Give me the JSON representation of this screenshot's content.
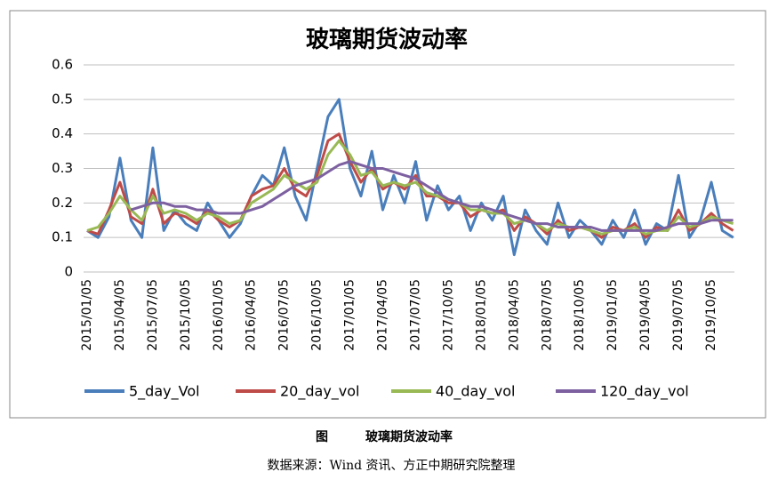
{
  "chart_data": {
    "type": "line",
    "title": "玻璃期货波动率",
    "categories": [
      "2015/01/05",
      null,
      null,
      "2015/04/05",
      null,
      null,
      "2015/07/05",
      null,
      null,
      "2015/10/05",
      null,
      null,
      "2016/01/05",
      null,
      null,
      "2016/04/05",
      null,
      null,
      "2016/07/05",
      null,
      null,
      "2016/10/05",
      null,
      null,
      "2017/01/05",
      null,
      null,
      "2017/04/05",
      null,
      null,
      "2017/07/05",
      null,
      null,
      "2017/10/05",
      null,
      null,
      "2018/01/05",
      null,
      null,
      "2018/04/05",
      null,
      null,
      "2018/07/05",
      null,
      null,
      "2018/10/05",
      null,
      null,
      "2019/01/05",
      null,
      null,
      "2019/04/05",
      null,
      null,
      "2019/07/05",
      null,
      null,
      "2019/10/05",
      null,
      null
    ],
    "series": [
      {
        "name": "5_day_Vol",
        "color": "#4a7ebb",
        "values": [
          0.12,
          0.1,
          0.16,
          0.33,
          0.15,
          0.1,
          0.36,
          0.12,
          0.18,
          0.14,
          0.12,
          0.2,
          0.15,
          0.1,
          0.14,
          0.22,
          0.28,
          0.25,
          0.36,
          0.22,
          0.15,
          0.3,
          0.45,
          0.5,
          0.3,
          0.22,
          0.35,
          0.18,
          0.28,
          0.2,
          0.32,
          0.15,
          0.25,
          0.18,
          0.22,
          0.12,
          0.2,
          0.15,
          0.22,
          0.05,
          0.18,
          0.12,
          0.08,
          0.2,
          0.1,
          0.15,
          0.12,
          0.08,
          0.15,
          0.1,
          0.18,
          0.08,
          0.14,
          0.12,
          0.28,
          0.1,
          0.15,
          0.26,
          0.12,
          0.1
        ]
      },
      {
        "name": "20_day_vol",
        "color": "#be4b48",
        "values": [
          0.12,
          0.11,
          0.18,
          0.26,
          0.16,
          0.14,
          0.24,
          0.14,
          0.17,
          0.16,
          0.14,
          0.18,
          0.15,
          0.13,
          0.15,
          0.22,
          0.24,
          0.25,
          0.3,
          0.24,
          0.22,
          0.28,
          0.38,
          0.4,
          0.32,
          0.26,
          0.3,
          0.24,
          0.26,
          0.24,
          0.28,
          0.22,
          0.22,
          0.2,
          0.2,
          0.16,
          0.18,
          0.17,
          0.18,
          0.12,
          0.16,
          0.14,
          0.11,
          0.15,
          0.12,
          0.13,
          0.12,
          0.1,
          0.13,
          0.12,
          0.14,
          0.1,
          0.13,
          0.12,
          0.18,
          0.12,
          0.14,
          0.17,
          0.14,
          0.12
        ]
      },
      {
        "name": "40_day_vol",
        "color": "#98b954",
        "values": [
          0.12,
          0.13,
          0.17,
          0.22,
          0.18,
          0.15,
          0.22,
          0.17,
          0.18,
          0.17,
          0.15,
          0.17,
          0.16,
          0.14,
          0.15,
          0.2,
          0.22,
          0.24,
          0.28,
          0.26,
          0.24,
          0.26,
          0.34,
          0.38,
          0.34,
          0.28,
          0.29,
          0.25,
          0.26,
          0.25,
          0.26,
          0.23,
          0.22,
          0.21,
          0.2,
          0.18,
          0.18,
          0.17,
          0.17,
          0.14,
          0.15,
          0.14,
          0.12,
          0.14,
          0.13,
          0.13,
          0.12,
          0.11,
          0.12,
          0.12,
          0.13,
          0.11,
          0.12,
          0.12,
          0.16,
          0.13,
          0.14,
          0.16,
          0.15,
          0.14
        ]
      },
      {
        "name": "120_day_vol",
        "color": "#7d60a0",
        "values": [
          null,
          null,
          null,
          null,
          0.18,
          0.19,
          0.2,
          0.2,
          0.19,
          0.19,
          0.18,
          0.18,
          0.17,
          0.17,
          0.17,
          0.18,
          0.19,
          0.21,
          0.23,
          0.25,
          0.26,
          0.27,
          0.29,
          0.31,
          0.32,
          0.31,
          0.3,
          0.3,
          0.29,
          0.28,
          0.27,
          0.25,
          0.23,
          0.21,
          0.2,
          0.19,
          0.19,
          0.18,
          0.17,
          0.16,
          0.15,
          0.14,
          0.14,
          0.13,
          0.13,
          0.13,
          0.13,
          0.12,
          0.12,
          0.12,
          0.12,
          0.12,
          0.12,
          0.13,
          0.14,
          0.14,
          0.14,
          0.15,
          0.15,
          0.15
        ]
      }
    ],
    "ylim": [
      0,
      0.6
    ],
    "yticks": [
      0,
      0.1,
      0.2,
      0.3,
      0.4,
      0.5,
      0.6
    ],
    "grid": true,
    "legend": "bottom"
  },
  "caption": {
    "label": "图",
    "title": "玻璃期货波动率",
    "source": "数据来源：Wind 资讯、方正中期研究院整理"
  }
}
